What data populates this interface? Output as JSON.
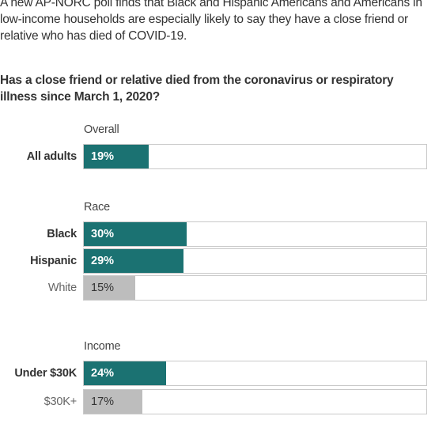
{
  "intro": "A new AP-NORC poll finds that Black and Hispanic Americans and Americans in low-income households are especially likely to say they have a close friend or relative who has died of COVID-19.",
  "question": "Has a close friend or relative died from the coronavirus or respiratory illness since March 1, 2020?",
  "colors": {
    "highlight": "#1b7272",
    "muted": "#bdbdbd",
    "track_border": "#c9c9c9"
  },
  "chart_data": {
    "type": "bar",
    "orientation": "horizontal",
    "unit": "%",
    "xlim": [
      0,
      100
    ],
    "grid": false,
    "groups": [
      {
        "title": "Overall",
        "bars": [
          {
            "category": "All adults",
            "value": 19,
            "label": "19%",
            "highlight": true
          }
        ]
      },
      {
        "title": "Race",
        "bars": [
          {
            "category": "Black",
            "value": 30,
            "label": "30%",
            "highlight": true
          },
          {
            "category": "Hispanic",
            "value": 29,
            "label": "29%",
            "highlight": true
          },
          {
            "category": "White",
            "value": 15,
            "label": "15%",
            "highlight": false
          }
        ]
      },
      {
        "title": "Income",
        "bars": [
          {
            "category": "Under $30K",
            "value": 24,
            "label": "24%",
            "highlight": true
          },
          {
            "category": "$30K+",
            "value": 17,
            "label": "17%",
            "highlight": false
          }
        ]
      }
    ]
  }
}
